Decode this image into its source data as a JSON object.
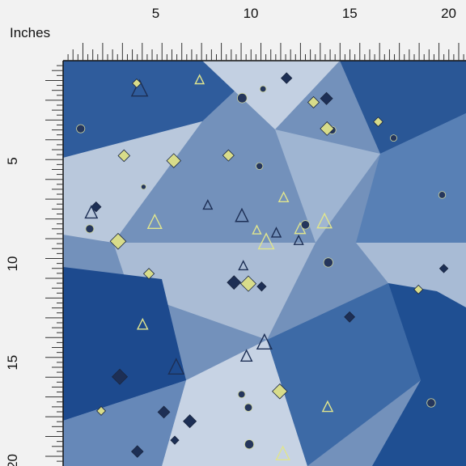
{
  "ruler": {
    "unit": "Inches",
    "top_labels": [
      5,
      10,
      15,
      20
    ],
    "left_labels": [
      5,
      10,
      15,
      20
    ]
  }
}
